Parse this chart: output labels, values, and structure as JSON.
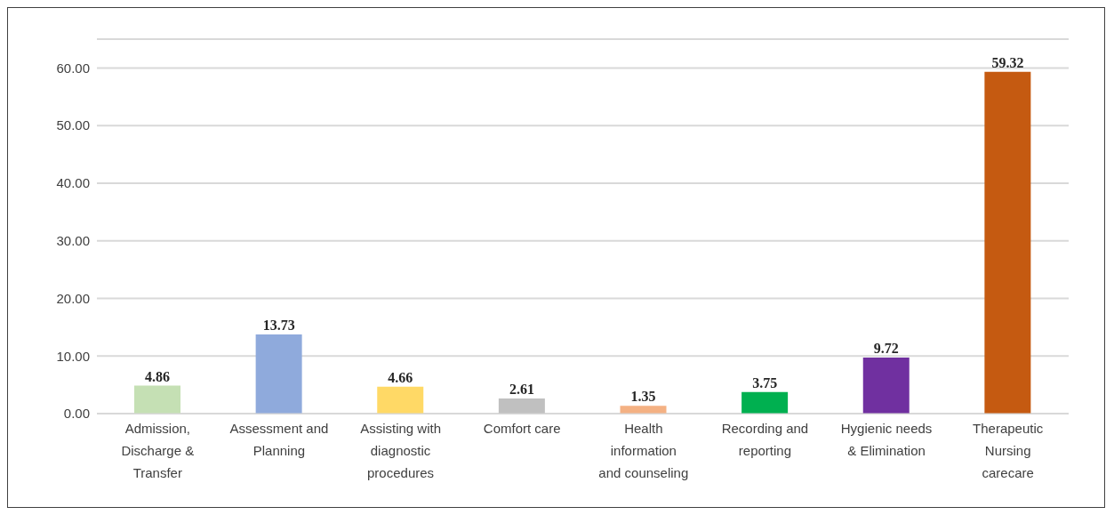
{
  "chart_data": {
    "type": "bar",
    "categories": [
      "Admission, Discharge & Transfer",
      "Assessment and Planning",
      "Assisting with diagnostic procedures",
      "Comfort care",
      "Health information and counseling",
      "Recording and reporting",
      "Hygienic needs & Elimination",
      "Therapeutic Nursing carecare"
    ],
    "values": [
      4.86,
      13.73,
      4.66,
      2.61,
      1.35,
      3.75,
      9.72,
      59.32
    ],
    "colors": [
      "#c5e0b4",
      "#8faadc",
      "#ffd966",
      "#c0c0c0",
      "#f4b183",
      "#00b050",
      "#7030a0",
      "#c55a11"
    ],
    "data_labels": true,
    "ylim": [
      0,
      65
    ],
    "yticks": [
      {
        "value": 0,
        "label": "0.00"
      },
      {
        "value": 10,
        "label": "10.00"
      },
      {
        "value": 20,
        "label": "20.00"
      },
      {
        "value": 30,
        "label": "30.00"
      },
      {
        "value": 40,
        "label": "40.00"
      },
      {
        "value": 50,
        "label": "50.00"
      },
      {
        "value": 60,
        "label": "60.00"
      }
    ],
    "grid": "y"
  }
}
